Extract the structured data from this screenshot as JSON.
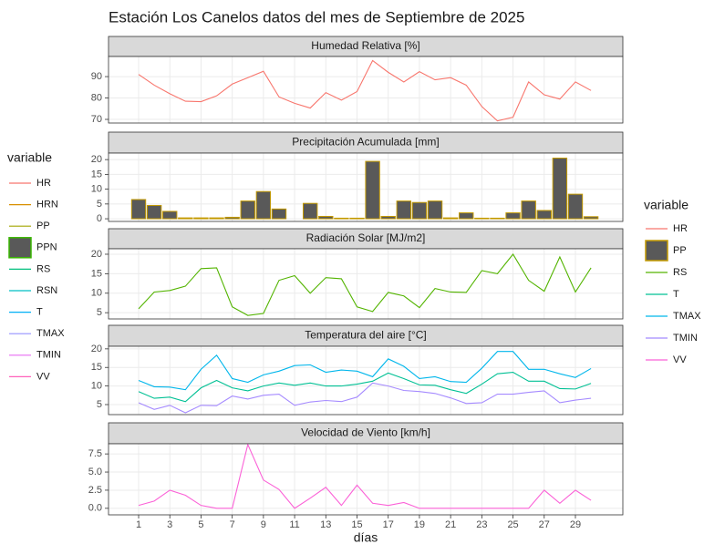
{
  "title": "Estación Los Canelos datos del mes de Septiembre de 2025",
  "x_label": "días",
  "x": [
    1,
    2,
    3,
    4,
    5,
    6,
    7,
    8,
    9,
    10,
    11,
    12,
    13,
    14,
    15,
    16,
    17,
    18,
    19,
    20,
    21,
    22,
    23,
    24,
    25,
    26,
    27,
    28,
    29,
    30
  ],
  "xlim": [
    -0.93,
    32.04
  ],
  "xticks": [
    1,
    3,
    5,
    7,
    9,
    11,
    13,
    15,
    17,
    19,
    21,
    23,
    25,
    27,
    29
  ],
  "legends": [
    {
      "title": "variable",
      "entries": [
        {
          "name": "HR",
          "color": "#F8766D"
        },
        {
          "name": "HRN",
          "color": "#D89000"
        },
        {
          "name": "PP",
          "color": "#A3A500"
        },
        {
          "name": "PPN",
          "color": "#595959",
          "border": "#39B600"
        },
        {
          "name": "RS",
          "color": "#00BF7D"
        },
        {
          "name": "RSN",
          "color": "#00BFC4"
        },
        {
          "name": "T",
          "color": "#00B0F6"
        },
        {
          "name": "TMAX",
          "color": "#9590FF"
        },
        {
          "name": "TMIN",
          "color": "#E76BF3"
        },
        {
          "name": "VV",
          "color": "#FF62BC"
        }
      ]
    },
    {
      "title": "variable",
      "entries": [
        {
          "name": "HR",
          "color": "#F8766D"
        },
        {
          "name": "PP",
          "color": "#595959",
          "border": "#C49A00"
        },
        {
          "name": "RS",
          "color": "#53B400"
        },
        {
          "name": "T",
          "color": "#00C094"
        },
        {
          "name": "TMAX",
          "color": "#00B6EB"
        },
        {
          "name": "TMIN",
          "color": "#A58AFF"
        },
        {
          "name": "VV",
          "color": "#FB61D7"
        }
      ]
    }
  ],
  "chart_data": [
    {
      "type": "line",
      "title": "Humedad Relativa [%]",
      "ylim": [
        68.3,
        99.4
      ],
      "yticks": [
        70,
        80,
        90
      ],
      "grid": true,
      "series": [
        {
          "name": "HR",
          "values": [
            91,
            86,
            82,
            78.5,
            78.3,
            81,
            86.5,
            89.5,
            92.5,
            80.5,
            77.5,
            75.3,
            82.5,
            79,
            83,
            97.5,
            92,
            87.5,
            92.3,
            88.5,
            89.5,
            86,
            76,
            69.3,
            71,
            87.5,
            81.5,
            79.5,
            87.5,
            83.5
          ]
        }
      ]
    },
    {
      "type": "bar",
      "title": "Precipitación Acumulada [mm]",
      "ylim": [
        -0.9,
        22.2
      ],
      "yticks": [
        0,
        5,
        10,
        15,
        20
      ],
      "grid": true,
      "series": [
        {
          "name": "PP",
          "values": [
            6.5,
            4.5,
            2.5,
            0.3,
            0.3,
            0.3,
            0.5,
            6,
            9.2,
            3.3,
            0,
            5.2,
            0.8,
            0.2,
            0.2,
            19.4,
            0.8,
            6,
            5.5,
            6,
            0.3,
            2,
            0.2,
            0.2,
            2,
            6,
            2.8,
            20.5,
            8.3,
            0.7
          ]
        }
      ]
    },
    {
      "type": "line",
      "title": "Radiación Solar [MJ/m2]",
      "ylim": [
        3.4,
        21.4
      ],
      "yticks": [
        5,
        10,
        15,
        20
      ],
      "grid": true,
      "series": [
        {
          "name": "RS",
          "values": [
            6,
            10.3,
            10.7,
            11.8,
            16.3,
            16.5,
            6.5,
            4.3,
            4.8,
            13.3,
            14.5,
            10,
            14,
            13.7,
            6.5,
            5.3,
            10.2,
            9.3,
            6.3,
            11.2,
            10.3,
            10.2,
            15.8,
            15,
            20,
            13.3,
            10.5,
            19.3,
            10.3,
            16.5
          ]
        }
      ]
    },
    {
      "type": "line",
      "title": "Temperatura del aire [°C]",
      "ylim": [
        2.3,
        20.7
      ],
      "yticks": [
        5,
        10,
        15,
        20
      ],
      "grid": true,
      "series": [
        {
          "name": "TMAX",
          "values": [
            11.5,
            9.8,
            9.7,
            9,
            14.5,
            18.3,
            12,
            11,
            13,
            14,
            15.5,
            15.7,
            13.7,
            14.3,
            14,
            12.5,
            17.3,
            15.3,
            12,
            12.5,
            11.2,
            11,
            14.8,
            19.3,
            19.3,
            14.5,
            14.5,
            13.3,
            12.3,
            14.7
          ]
        },
        {
          "name": "T",
          "values": [
            8.5,
            6.7,
            7,
            5.8,
            9.5,
            11.5,
            9.5,
            8.7,
            10,
            10.8,
            10.2,
            10.8,
            10,
            10,
            10.5,
            11.3,
            13.5,
            12,
            10.3,
            10.2,
            9,
            8,
            10.5,
            13.3,
            13.7,
            11.3,
            11.3,
            9.3,
            9.2,
            10.7
          ]
        },
        {
          "name": "TMIN",
          "values": [
            5.5,
            3.7,
            4.8,
            2.8,
            4.8,
            4.7,
            7.3,
            6.5,
            7.5,
            7.8,
            4.8,
            5.7,
            6.1,
            5.8,
            7,
            10.8,
            10,
            8.8,
            8.5,
            8,
            6.8,
            5.3,
            5.5,
            7.8,
            7.8,
            8.3,
            8.7,
            5.5,
            6.2,
            6.7
          ]
        }
      ]
    },
    {
      "type": "line",
      "title": "Velocidad de Viento [km/h]",
      "ylim": [
        -0.9,
        8.9
      ],
      "yticks": [
        {
          "value": 0,
          "label": "0.0"
        },
        2.5,
        {
          "value": 5,
          "label": "5.0"
        },
        7.5
      ],
      "grid": true,
      "series": [
        {
          "name": "VV",
          "values": [
            0.4,
            1,
            2.5,
            1.8,
            0.4,
            0,
            0,
            8.8,
            3.9,
            2.6,
            0,
            1.4,
            2.9,
            0.4,
            3.2,
            0.7,
            0.4,
            0.8,
            0,
            0,
            0,
            0,
            0,
            0,
            0,
            0,
            2.5,
            0.7,
            2.5,
            1.1
          ]
        }
      ]
    }
  ]
}
